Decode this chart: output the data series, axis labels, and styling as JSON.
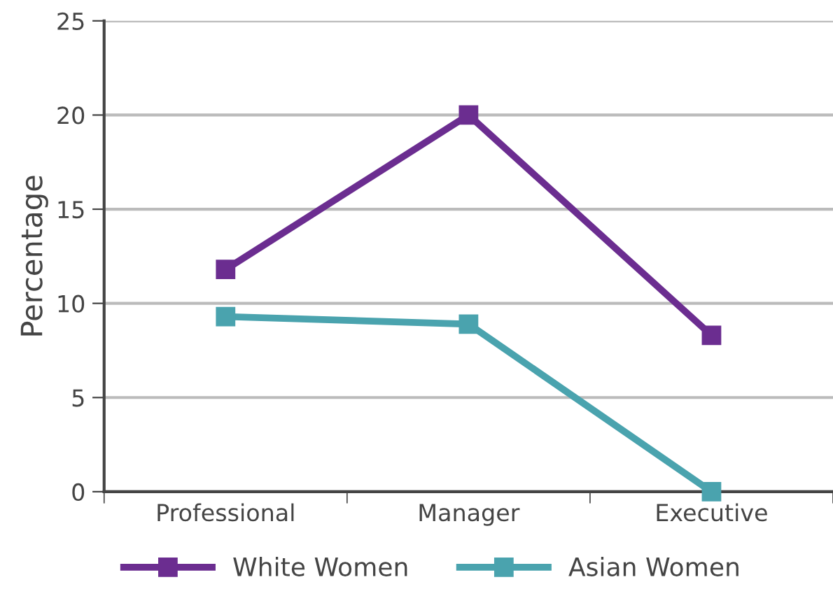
{
  "chart_data": {
    "type": "line",
    "ylabel": "Percentage",
    "categories": [
      "Professional",
      "Manager",
      "Executive"
    ],
    "series": [
      {
        "name": "White Women",
        "color": "#6b2d90",
        "values": [
          11.8,
          20,
          8.3
        ]
      },
      {
        "name": "Asian Women",
        "color": "#4aa3ae",
        "values": [
          9.3,
          8.9,
          0
        ]
      }
    ],
    "ylim": [
      0,
      25
    ],
    "yticks": [
      0,
      5,
      10,
      15,
      20,
      25
    ],
    "grid": "y",
    "legend": "bottom",
    "marker": "square",
    "line_style": "solid"
  }
}
